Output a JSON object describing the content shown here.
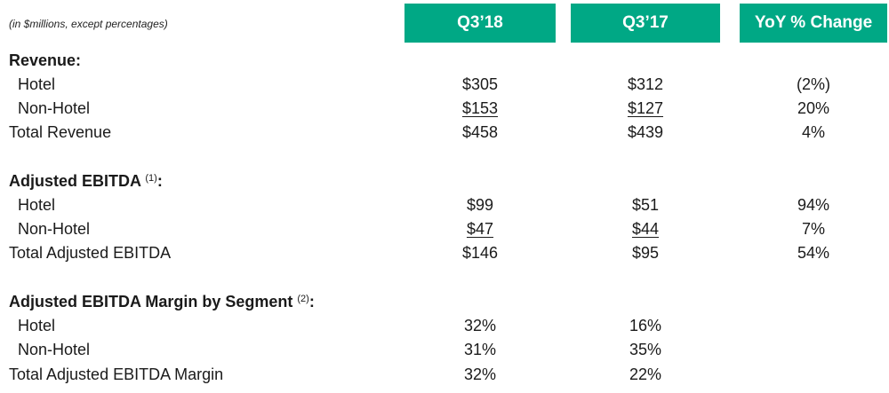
{
  "note": "(in $millions, except percentages)",
  "columns": [
    "Q3’18",
    "Q3’17",
    "YoY % Change"
  ],
  "revenue": {
    "title": "Revenue:",
    "hotel": {
      "label": "Hotel",
      "q318": "$305",
      "q317": "$312",
      "yoy": "(2%)"
    },
    "nonhotel": {
      "label": "Non-Hotel",
      "q318": "$153",
      "q317": "$127",
      "yoy": "20%"
    },
    "total": {
      "label": "Total Revenue",
      "q318": "$458",
      "q317": "$439",
      "yoy": "4%"
    }
  },
  "ebitda": {
    "title": "Adjusted EBITDA",
    "footnote": "(1)",
    "colon": ":",
    "hotel": {
      "label": "Hotel",
      "q318": "$99",
      "q317": "$51",
      "yoy": "94%"
    },
    "nonhotel": {
      "label": "Non-Hotel",
      "q318": "$47",
      "q317": "$44",
      "yoy": "7%"
    },
    "total": {
      "label": "Total Adjusted EBITDA",
      "q318": "$146",
      "q317": "$95",
      "yoy": "54%"
    }
  },
  "margin": {
    "title": "Adjusted EBITDA Margin by Segment",
    "footnote": "(2)",
    "colon": ":",
    "hotel": {
      "label": "Hotel",
      "q318": "32%",
      "q317": "16%"
    },
    "nonhotel": {
      "label": "Non-Hotel",
      "q318": "31%",
      "q317": "35%"
    },
    "total": {
      "label": "Total Adjusted EBITDA Margin",
      "q318": "32%",
      "q317": "22%"
    }
  },
  "colors": {
    "header_bg": "#00a885",
    "header_text": "#ffffff"
  }
}
